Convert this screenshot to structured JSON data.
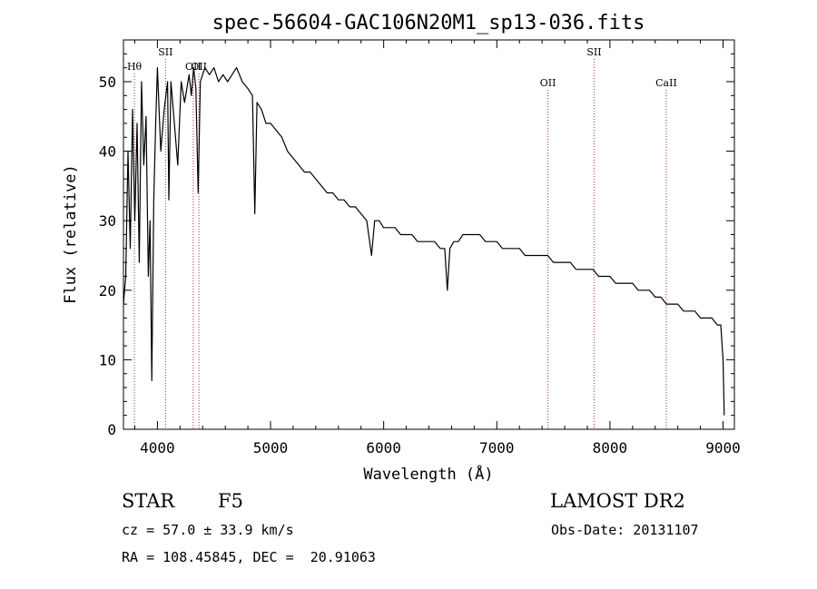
{
  "title": "spec-56604-GAC106N20M1_sp13-036.fits",
  "chart_data": {
    "type": "line",
    "xlabel": "Wavelength (Å)",
    "ylabel": "Flux (relative)",
    "xlim": [
      3700,
      9100
    ],
    "ylim": [
      0,
      56
    ],
    "xticks": [
      4000,
      5000,
      6000,
      7000,
      8000,
      9000
    ],
    "yticks": [
      0,
      10,
      20,
      30,
      40,
      50
    ],
    "line_color": "#000000",
    "marker_color": "#b03030",
    "series": [
      {
        "x": [
          3700,
          3720,
          3740,
          3760,
          3780,
          3800,
          3820,
          3840,
          3860,
          3880,
          3900,
          3920,
          3935,
          3950,
          3968,
          3985,
          4000,
          4030,
          4060,
          4090,
          4101,
          4120,
          4150,
          4180,
          4210,
          4240,
          4280,
          4300,
          4320,
          4340,
          4360,
          4380,
          4420,
          4460,
          4500,
          4540,
          4580,
          4620,
          4660,
          4700,
          4750,
          4800,
          4840,
          4861,
          4880,
          4920,
          4960,
          5000,
          5050,
          5100,
          5150,
          5200,
          5250,
          5300,
          5350,
          5400,
          5450,
          5500,
          5550,
          5600,
          5650,
          5700,
          5750,
          5800,
          5850,
          5893,
          5920,
          5960,
          6000,
          6050,
          6100,
          6150,
          6200,
          6250,
          6300,
          6350,
          6400,
          6450,
          6500,
          6540,
          6563,
          6585,
          6620,
          6660,
          6700,
          6750,
          6800,
          6850,
          6900,
          6950,
          7000,
          7050,
          7100,
          7150,
          7200,
          7250,
          7300,
          7350,
          7400,
          7450,
          7500,
          7550,
          7600,
          7650,
          7700,
          7750,
          7800,
          7850,
          7900,
          7950,
          8000,
          8050,
          8100,
          8150,
          8200,
          8250,
          8300,
          8350,
          8400,
          8450,
          8500,
          8550,
          8600,
          8650,
          8700,
          8750,
          8800,
          8850,
          8900,
          8950,
          8980,
          9000,
          9010
        ],
        "y": [
          18,
          22,
          40,
          26,
          46,
          30,
          44,
          24,
          50,
          38,
          45,
          22,
          30,
          7,
          33,
          44,
          52,
          40,
          46,
          50,
          33,
          50,
          44,
          38,
          50,
          47,
          51,
          48,
          52,
          49,
          34,
          50,
          52,
          51,
          52,
          50,
          51,
          50,
          51,
          52,
          50,
          49,
          48,
          31,
          47,
          46,
          44,
          44,
          43,
          42,
          40,
          39,
          38,
          37,
          37,
          36,
          35,
          34,
          34,
          33,
          33,
          32,
          32,
          31,
          30,
          25,
          30,
          30,
          29,
          29,
          29,
          28,
          28,
          28,
          27,
          27,
          27,
          27,
          26,
          26,
          20,
          26,
          27,
          27,
          28,
          28,
          28,
          28,
          27,
          27,
          27,
          26,
          26,
          26,
          26,
          25,
          25,
          25,
          25,
          25,
          24,
          24,
          24,
          24,
          23,
          23,
          23,
          23,
          22,
          22,
          22,
          21,
          21,
          21,
          21,
          20,
          20,
          20,
          19,
          19,
          18,
          18,
          18,
          17,
          17,
          17,
          16,
          16,
          16,
          15,
          15,
          10,
          2
        ]
      }
    ],
    "lines": [
      {
        "label": "Hθ",
        "wavelength": 3797,
        "label_row": 2
      },
      {
        "label": "SII",
        "wavelength": 4072,
        "label_row": 1
      },
      {
        "label": "OII",
        "wavelength": 4317,
        "label_row": 2
      },
      {
        "label": "OII",
        "wavelength": 4367,
        "label_row": 2
      },
      {
        "label": "OII",
        "wavelength": 7452,
        "label_row": 3
      },
      {
        "label": "SII",
        "wavelength": 7860,
        "label_row": 1
      },
      {
        "label": "CaII",
        "wavelength": 8498,
        "label_row": 3
      }
    ]
  },
  "info": {
    "class": "STAR",
    "subclass": "F5",
    "survey": "LAMOST DR2",
    "cz": "cz = 57.0 ± 33.9 km/s",
    "obs_date": "Obs-Date: 20131107",
    "coords": "RA = 108.45845, DEC =  20.91063"
  }
}
